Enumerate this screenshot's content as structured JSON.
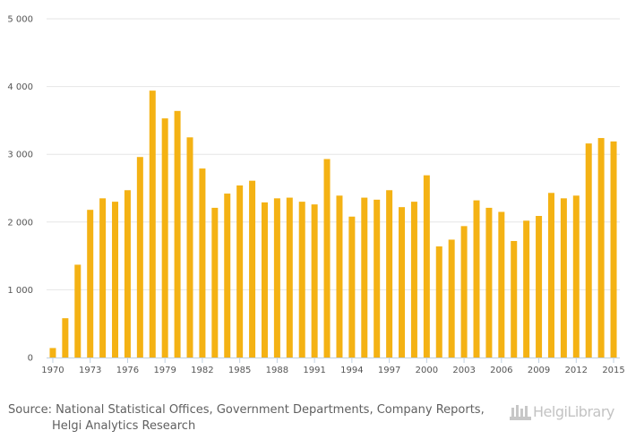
{
  "chart_data": {
    "type": "bar",
    "title": "",
    "xlabel": "",
    "ylabel": "",
    "ylim": [
      0,
      5000
    ],
    "yticks": [
      0,
      1000,
      2000,
      3000,
      4000,
      5000
    ],
    "ytick_labels": [
      "0",
      "1 000",
      "2 000",
      "3 000",
      "4 000",
      "5 000"
    ],
    "grid": true,
    "bar_color": "#f4b214",
    "categories": [
      "1970",
      "1971",
      "1972",
      "1973",
      "1974",
      "1975",
      "1976",
      "1977",
      "1978",
      "1979",
      "1980",
      "1981",
      "1982",
      "1983",
      "1984",
      "1985",
      "1986",
      "1987",
      "1988",
      "1989",
      "1990",
      "1991",
      "1992",
      "1993",
      "1994",
      "1995",
      "1996",
      "1997",
      "1998",
      "1999",
      "2000",
      "2001",
      "2002",
      "2003",
      "2004",
      "2005",
      "2006",
      "2007",
      "2008",
      "2009",
      "2010",
      "2011",
      "2012",
      "2013",
      "2014",
      "2015"
    ],
    "values": [
      140,
      580,
      1370,
      2180,
      2350,
      2300,
      2470,
      2960,
      3940,
      3530,
      3640,
      3250,
      2790,
      2210,
      2420,
      2540,
      2610,
      2290,
      2350,
      2360,
      2300,
      2260,
      2930,
      2390,
      2080,
      2360,
      2330,
      2470,
      2220,
      2300,
      2690,
      1640,
      1740,
      1940,
      2320,
      2210,
      2150,
      1720,
      2020,
      2090,
      2430,
      2350,
      2390,
      3160,
      3240,
      3190
    ],
    "xtick_labels": [
      "1970",
      "1973",
      "1976",
      "1979",
      "1982",
      "1985",
      "1988",
      "1991",
      "1994",
      "1997",
      "2000",
      "2003",
      "2006",
      "2009",
      "2012",
      "2015"
    ]
  },
  "footer": {
    "source_line1": "Source: National Statistical Offices, Government Departments, Company Reports,",
    "source_line2": "Helgi Analytics Research"
  },
  "logo": {
    "text": "HelgiLibrary",
    "icon": "helgi-library-icon"
  }
}
